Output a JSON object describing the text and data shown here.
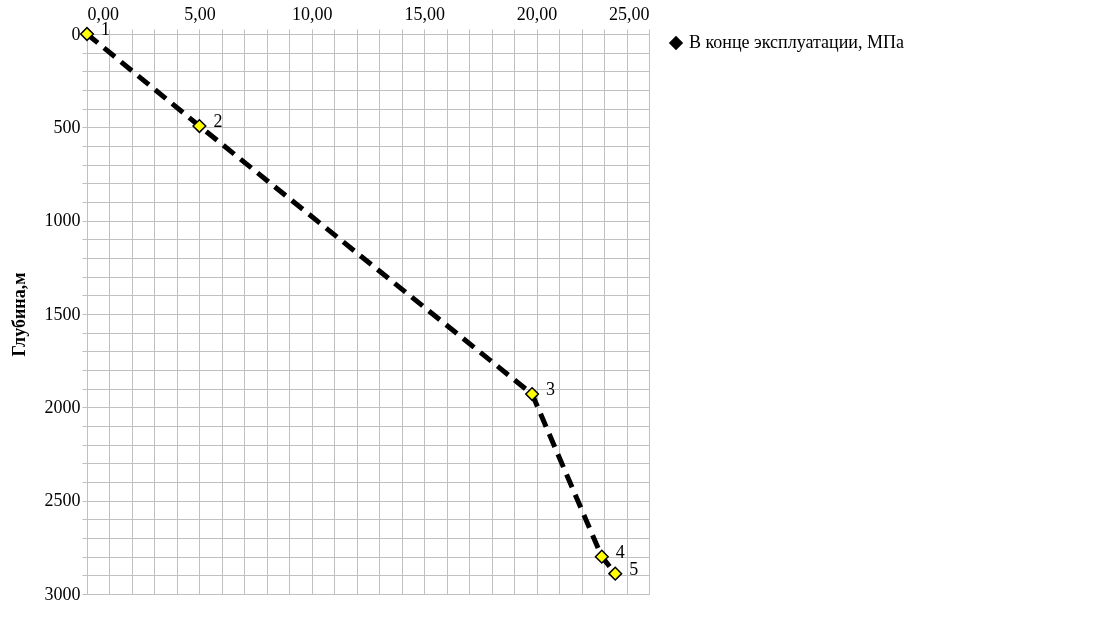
{
  "chart_data": {
    "type": "line",
    "ylabel": "Глубина,м",
    "x": [
      0,
      5.0,
      19.8,
      22.9,
      23.5
    ],
    "series": [
      {
        "name": "В конце эксплуатации, МПа",
        "color": "#000000",
        "values": [
          0,
          493,
          1929,
          2800,
          2891
        ]
      }
    ],
    "xlim": [
      0,
      25
    ],
    "ylim": [
      3000,
      0
    ],
    "xticks": [
      {
        "value": 0,
        "label": "0,00"
      },
      {
        "value": 1,
        "label": null
      },
      {
        "value": 2,
        "label": null
      },
      {
        "value": 3,
        "label": null
      },
      {
        "value": 4,
        "label": null
      },
      {
        "value": 5,
        "label": "5,00"
      },
      {
        "value": 6,
        "label": null
      },
      {
        "value": 7,
        "label": null
      },
      {
        "value": 8,
        "label": null
      },
      {
        "value": 9,
        "label": null
      },
      {
        "value": 10,
        "label": "10,00"
      },
      {
        "value": 11,
        "label": null
      },
      {
        "value": 12,
        "label": null
      },
      {
        "value": 13,
        "label": null
      },
      {
        "value": 14,
        "label": null
      },
      {
        "value": 15,
        "label": "15,00"
      },
      {
        "value": 16,
        "label": null
      },
      {
        "value": 17,
        "label": null
      },
      {
        "value": 18,
        "label": null
      },
      {
        "value": 19,
        "label": null
      },
      {
        "value": 20,
        "label": "20,00"
      },
      {
        "value": 21,
        "label": null
      },
      {
        "value": 22,
        "label": null
      },
      {
        "value": 23,
        "label": null
      },
      {
        "value": 24,
        "label": null
      },
      {
        "value": 25,
        "label": "25,00"
      }
    ],
    "yticks": [
      0,
      {
        "value": 100,
        "label": null
      },
      {
        "value": 200,
        "label": null
      },
      {
        "value": 300,
        "label": null
      },
      {
        "value": 400,
        "label": null
      },
      500,
      {
        "value": 600,
        "label": null
      },
      {
        "value": 700,
        "label": null
      },
      {
        "value": 800,
        "label": null
      },
      {
        "value": 900,
        "label": null
      },
      1000,
      {
        "value": 1100,
        "label": null
      },
      {
        "value": 1200,
        "label": null
      },
      {
        "value": 1300,
        "label": null
      },
      {
        "value": 1400,
        "label": null
      },
      1500,
      {
        "value": 1600,
        "label": null
      },
      {
        "value": 1700,
        "label": null
      },
      {
        "value": 1800,
        "label": null
      },
      {
        "value": 1900,
        "label": null
      },
      2000,
      {
        "value": 2100,
        "label": null
      },
      {
        "value": 2200,
        "label": null
      },
      {
        "value": 2300,
        "label": null
      },
      {
        "value": 2400,
        "label": null
      },
      2500,
      {
        "value": 2600,
        "label": null
      },
      {
        "value": 2700,
        "label": null
      },
      {
        "value": 2800,
        "label": null
      },
      {
        "value": 2900,
        "label": null
      },
      3000
    ],
    "annotations": [
      {
        "text": "1",
        "x": 0,
        "y": 0
      },
      {
        "text": "2",
        "x": 5.0,
        "y": 493
      },
      {
        "text": "3",
        "x": 19.8,
        "y": 1929
      },
      {
        "text": "4",
        "x": 22.9,
        "y": 2800
      },
      {
        "text": "5",
        "x": 23.5,
        "y": 2891
      }
    ],
    "grid": true,
    "legend": "right",
    "marker": "diamond",
    "line_style": "dashed"
  }
}
